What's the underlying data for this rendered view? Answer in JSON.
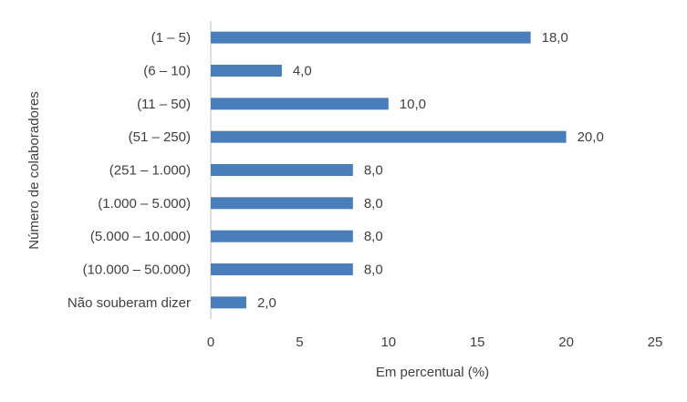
{
  "chart_data": {
    "type": "bar",
    "orientation": "horizontal",
    "x_label": "Em percentual (%)",
    "y_label": "Número de colaboradores",
    "categories": [
      "(1 – 5)",
      "(6 – 10)",
      "(11 – 50)",
      "(51 – 250)",
      "(251 – 1.000)",
      "(1.000 – 5.000)",
      "(5.000 – 10.000)",
      "(10.000 – 50.000)",
      "Não souberam dizer"
    ],
    "values": [
      18,
      4,
      10,
      20,
      8,
      8,
      8,
      8,
      2
    ],
    "value_labels": [
      "18,0",
      "4,0",
      "10,0",
      "20,0",
      "8,0",
      "8,0",
      "8,0",
      "8,0",
      "2,0"
    ],
    "color": "#4a7ebb",
    "xlim": [
      0,
      25
    ],
    "xticks": [
      0,
      5,
      10,
      15,
      20,
      25
    ],
    "grid": false
  }
}
